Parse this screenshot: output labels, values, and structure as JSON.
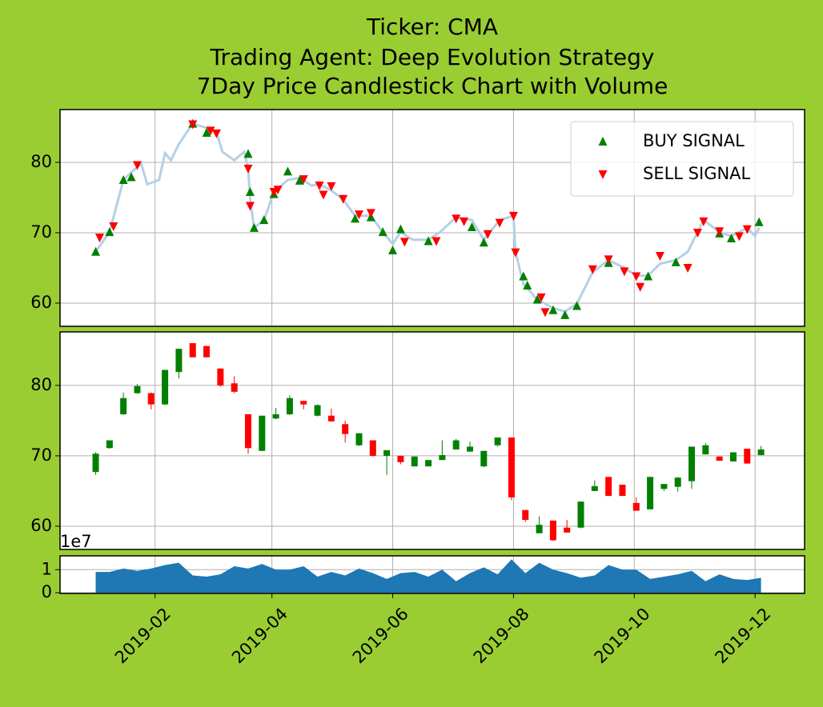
{
  "chart_data": [
    {
      "type": "line",
      "title": [
        "Ticker: CMA",
        "Trading Agent: Deep Evolution Strategy",
        "7Day Price Candlestick Chart with Volume"
      ],
      "x": [
        "2019-01-02",
        "2019-01-09",
        "2019-01-16",
        "2019-01-20",
        "2019-01-25",
        "2019-01-28",
        "2019-02-03",
        "2019-02-06",
        "2019-02-09",
        "2019-02-13",
        "2019-02-20",
        "2019-02-27",
        "2019-03-04",
        "2019-03-07",
        "2019-03-13",
        "2019-03-18",
        "2019-03-20",
        "2019-03-21",
        "2019-03-23",
        "2019-03-28",
        "2019-04-02",
        "2019-04-09",
        "2019-04-15",
        "2019-04-21",
        "2019-04-25",
        "2019-05-01",
        "2019-05-07",
        "2019-05-13",
        "2019-05-21",
        "2019-05-27",
        "2019-06-01",
        "2019-06-05",
        "2019-06-11",
        "2019-06-19",
        "2019-06-25",
        "2019-07-03",
        "2019-07-11",
        "2019-07-17",
        "2019-07-25",
        "2019-08-01",
        "2019-08-02",
        "2019-08-06",
        "2019-08-13",
        "2019-08-21",
        "2019-08-27",
        "2019-09-02",
        "2019-09-10",
        "2019-09-18",
        "2019-09-26",
        "2019-10-02",
        "2019-10-08",
        "2019-10-14",
        "2019-10-22",
        "2019-10-28",
        "2019-11-05",
        "2019-11-13",
        "2019-11-19",
        "2019-11-27",
        "2019-12-01",
        "2019-12-03"
      ],
      "values": [
        67.3,
        70.1,
        77.5,
        78.6,
        79.8,
        76.9,
        77.5,
        81.3,
        80.3,
        82.6,
        85.5,
        84.9,
        84.3,
        81.5,
        80.3,
        81.5,
        79.2,
        74.7,
        70.7,
        71.8,
        75.8,
        77.5,
        77.8,
        76.7,
        76.9,
        76.0,
        74.7,
        72.4,
        72.4,
        70.1,
        68.4,
        70.1,
        69.0,
        69.0,
        70.1,
        72.2,
        71.8,
        69.0,
        71.8,
        72.4,
        67.3,
        62.7,
        60.5,
        59.3,
        58.8,
        59.9,
        64.4,
        66.1,
        65.0,
        63.9,
        63.9,
        65.6,
        66.1,
        67.3,
        71.8,
        70.1,
        69.5,
        70.7,
        69.5,
        70.7
      ],
      "color": "#b4d0e6",
      "series": [
        {
          "name": "BUY SIGNAL",
          "color": "green",
          "marker": "triangle-up",
          "x": [
            "2019-01-02",
            "2019-01-09",
            "2019-01-16",
            "2019-01-20",
            "2019-02-20",
            "2019-02-27",
            "2019-03-20",
            "2019-03-21",
            "2019-03-23",
            "2019-03-28",
            "2019-04-02",
            "2019-04-09",
            "2019-04-15",
            "2019-05-13",
            "2019-05-21",
            "2019-05-27",
            "2019-06-01",
            "2019-06-05",
            "2019-06-19",
            "2019-07-11",
            "2019-07-17",
            "2019-08-06",
            "2019-08-08",
            "2019-08-13",
            "2019-08-21",
            "2019-08-27",
            "2019-09-02",
            "2019-09-18",
            "2019-10-08",
            "2019-10-22",
            "2019-11-13",
            "2019-11-19",
            "2019-12-03"
          ],
          "values": [
            67.3,
            70.1,
            77.5,
            77.9,
            85.5,
            84.2,
            81.2,
            75.8,
            70.7,
            71.8,
            75.5,
            78.7,
            77.4,
            72.0,
            72.2,
            70.1,
            67.5,
            70.5,
            68.8,
            70.8,
            68.6,
            63.8,
            62.5,
            60.5,
            59.0,
            58.3,
            59.6,
            65.7,
            63.8,
            65.8,
            69.9,
            69.2,
            71.5
          ]
        },
        {
          "name": "SELL SIGNAL",
          "color": "red",
          "marker": "triangle-down",
          "x": [
            "2019-01-04",
            "2019-01-11",
            "2019-01-23",
            "2019-02-20",
            "2019-03-01",
            "2019-03-04",
            "2019-03-20",
            "2019-03-21",
            "2019-04-02",
            "2019-04-04",
            "2019-04-17",
            "2019-04-25",
            "2019-04-27",
            "2019-05-01",
            "2019-05-07",
            "2019-05-15",
            "2019-05-21",
            "2019-06-07",
            "2019-06-23",
            "2019-07-03",
            "2019-07-07",
            "2019-07-19",
            "2019-07-25",
            "2019-08-01",
            "2019-08-02",
            "2019-08-15",
            "2019-08-17",
            "2019-09-10",
            "2019-09-18",
            "2019-09-26",
            "2019-10-02",
            "2019-10-04",
            "2019-10-14",
            "2019-10-28",
            "2019-11-02",
            "2019-11-05",
            "2019-11-13",
            "2019-11-23",
            "2019-11-27"
          ],
          "values": [
            69.3,
            70.9,
            79.6,
            85.4,
            84.5,
            84.1,
            79.1,
            73.8,
            75.8,
            76.1,
            77.6,
            76.7,
            75.4,
            76.6,
            74.8,
            72.6,
            72.8,
            68.7,
            68.8,
            72.0,
            71.6,
            69.8,
            71.4,
            72.4,
            67.2,
            60.8,
            58.7,
            64.8,
            66.2,
            64.5,
            63.8,
            62.3,
            66.7,
            65.0,
            70.0,
            71.6,
            70.2,
            69.5,
            70.5
          ]
        }
      ],
      "ylim": [
        56.7,
        87.5
      ],
      "yticks": [
        60,
        70,
        80
      ],
      "grid": true,
      "legend": "upper right"
    },
    {
      "type": "candlestick",
      "x": [
        "2019-01-02",
        "2019-01-09",
        "2019-01-16",
        "2019-01-23",
        "2019-01-30",
        "2019-02-06",
        "2019-02-13",
        "2019-02-20",
        "2019-02-27",
        "2019-03-06",
        "2019-03-13",
        "2019-03-20",
        "2019-03-27",
        "2019-04-03",
        "2019-04-10",
        "2019-04-17",
        "2019-04-24",
        "2019-05-01",
        "2019-05-08",
        "2019-05-15",
        "2019-05-22",
        "2019-05-29",
        "2019-06-05",
        "2019-06-12",
        "2019-06-19",
        "2019-06-26",
        "2019-07-03",
        "2019-07-10",
        "2019-07-17",
        "2019-07-24",
        "2019-07-31",
        "2019-08-07",
        "2019-08-14",
        "2019-08-21",
        "2019-08-28",
        "2019-09-04",
        "2019-09-11",
        "2019-09-18",
        "2019-09-25",
        "2019-10-02",
        "2019-10-09",
        "2019-10-16",
        "2019-10-23",
        "2019-10-30",
        "2019-11-06",
        "2019-11-13",
        "2019-11-20",
        "2019-11-27",
        "2019-12-04"
      ],
      "open": [
        67.7,
        71.1,
        75.9,
        78.9,
        78.9,
        77.3,
        81.9,
        86.0,
        85.6,
        82.4,
        80.3,
        75.9,
        70.7,
        75.3,
        75.9,
        77.8,
        75.7,
        75.7,
        74.5,
        71.5,
        72.2,
        70.0,
        70.0,
        68.5,
        68.5,
        69.4,
        70.9,
        70.6,
        68.5,
        71.5,
        72.6,
        62.3,
        59.0,
        60.8,
        59.8,
        59.8,
        65.0,
        67.0,
        65.9,
        63.3,
        62.4,
        65.3,
        65.6,
        66.4,
        70.2,
        69.9,
        69.2,
        71.0,
        70.1
      ],
      "high": [
        70.5,
        72.2,
        79.0,
        80.2,
        79.0,
        82.2,
        85.2,
        86.0,
        85.6,
        82.4,
        81.3,
        75.9,
        75.7,
        76.8,
        78.6,
        77.8,
        77.3,
        76.7,
        75.0,
        73.2,
        72.2,
        70.8,
        70.0,
        69.9,
        69.4,
        72.2,
        72.4,
        72.0,
        70.7,
        72.6,
        72.6,
        62.3,
        61.4,
        60.8,
        60.9,
        63.5,
        66.5,
        67.0,
        65.9,
        64.1,
        67.0,
        66.0,
        67.0,
        71.3,
        71.8,
        69.9,
        70.5,
        71.0,
        71.4
      ],
      "low": [
        67.3,
        71.0,
        75.8,
        78.8,
        76.6,
        77.2,
        81.0,
        84.0,
        84.0,
        79.8,
        78.9,
        70.3,
        70.7,
        75.2,
        75.8,
        76.6,
        75.6,
        74.8,
        71.9,
        71.4,
        69.9,
        67.3,
        68.8,
        68.5,
        68.5,
        69.4,
        70.9,
        70.6,
        68.4,
        71.3,
        63.7,
        60.6,
        59.0,
        57.9,
        59.1,
        59.7,
        65.0,
        64.3,
        64.3,
        62.2,
        62.4,
        65.0,
        64.9,
        65.3,
        70.2,
        69.3,
        69.2,
        68.9,
        70.1
      ],
      "close": [
        70.3,
        72.2,
        78.2,
        79.9,
        77.3,
        82.2,
        85.2,
        84.0,
        84.0,
        80.0,
        79.1,
        71.1,
        75.7,
        75.9,
        78.2,
        77.3,
        77.2,
        74.9,
        73.1,
        73.2,
        70.0,
        70.8,
        69.1,
        69.9,
        69.4,
        70.1,
        72.2,
        71.3,
        70.7,
        72.6,
        64.1,
        60.9,
        60.2,
        58.0,
        59.1,
        63.5,
        65.7,
        64.3,
        64.3,
        62.2,
        67.0,
        66.0,
        66.9,
        71.3,
        71.5,
        69.3,
        70.5,
        68.9,
        70.9
      ],
      "up_color": "green",
      "down_color": "red",
      "ylim": [
        56.7,
        87.6
      ],
      "yticks": [
        60,
        70,
        80
      ],
      "grid": true
    },
    {
      "type": "area",
      "x": [
        "2019-01-02",
        "2019-01-09",
        "2019-01-16",
        "2019-01-23",
        "2019-01-30",
        "2019-02-06",
        "2019-02-13",
        "2019-02-20",
        "2019-02-27",
        "2019-03-06",
        "2019-03-13",
        "2019-03-20",
        "2019-03-27",
        "2019-04-03",
        "2019-04-10",
        "2019-04-17",
        "2019-04-24",
        "2019-05-01",
        "2019-05-08",
        "2019-05-15",
        "2019-05-22",
        "2019-05-29",
        "2019-06-05",
        "2019-06-12",
        "2019-06-19",
        "2019-06-26",
        "2019-07-03",
        "2019-07-10",
        "2019-07-17",
        "2019-07-24",
        "2019-07-31",
        "2019-08-07",
        "2019-08-14",
        "2019-08-21",
        "2019-08-28",
        "2019-09-04",
        "2019-09-11",
        "2019-09-18",
        "2019-09-25",
        "2019-10-02",
        "2019-10-09",
        "2019-10-16",
        "2019-10-23",
        "2019-10-30",
        "2019-11-06",
        "2019-11-13",
        "2019-11-20",
        "2019-11-27",
        "2019-12-04"
      ],
      "values": [
        0.9,
        0.9,
        1.05,
        0.95,
        1.05,
        1.2,
        1.3,
        0.75,
        0.7,
        0.8,
        1.15,
        1.05,
        1.25,
        1.0,
        1.0,
        1.15,
        0.7,
        0.9,
        0.75,
        1.05,
        0.85,
        0.6,
        0.85,
        0.9,
        0.7,
        1.0,
        0.5,
        0.85,
        1.1,
        0.8,
        1.45,
        0.85,
        1.3,
        1.0,
        0.85,
        0.65,
        0.75,
        1.2,
        1.0,
        1.0,
        0.6,
        0.7,
        0.8,
        0.95,
        0.5,
        0.8,
        0.6,
        0.55,
        0.65
      ],
      "color": "#1f77b4",
      "offset_label": "1e7",
      "xlim": [
        "2018-12-15",
        "2019-12-26"
      ],
      "xticks": [
        {
          "value": "2019-02-01",
          "label": "2019-02"
        },
        {
          "value": "2019-04-01",
          "label": "2019-04"
        },
        {
          "value": "2019-06-01",
          "label": "2019-06"
        },
        {
          "value": "2019-08-01",
          "label": "2019-08"
        },
        {
          "value": "2019-10-01",
          "label": "2019-10"
        },
        {
          "value": "2019-12-01",
          "label": "2019-12"
        }
      ],
      "ylim": [
        -0.03,
        1.6
      ],
      "yticks": [
        0,
        1
      ],
      "grid": true
    }
  ]
}
